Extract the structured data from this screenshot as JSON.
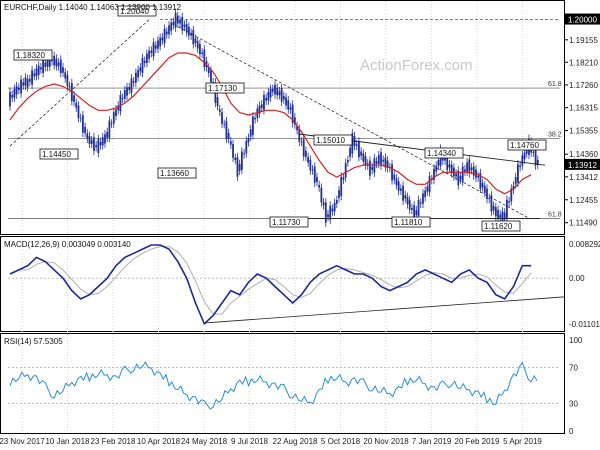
{
  "header": {
    "main": "EURCHF,Daily  1.14040 1.14063 1.13900 1.13912",
    "macd": "MACD(12,26,9) 0.003049 0.003140",
    "rsi": "RSI(14) 57.5305"
  },
  "watermark": "ActionForex.com",
  "colors": {
    "price": "#1e2f9b",
    "ema": "#d62020",
    "macd": "#1a2a9a",
    "signal": "#b0b0b0",
    "rsi": "#2a8ed8",
    "level": "#111111",
    "grid": "#d8d8d8"
  },
  "chart_data": [
    {
      "type": "candlestick",
      "title": "EURCHF,Daily",
      "ohlc_last": {
        "open": 1.1404,
        "high": 1.14063,
        "low": 1.139,
        "close": 1.13912
      },
      "ylim": [
        1.111,
        1.204
      ],
      "y_ticks": [
        1.2,
        1.1915,
        1.1821,
        1.1726,
        1.1631,
        1.1535,
        1.1436,
        1.1341,
        1.1245,
        1.1149
      ],
      "y_tick_labels": [
        "1.20000",
        "1.19155",
        "1.18210",
        "1.17260",
        "1.16315",
        "1.15355",
        "1.14360",
        "1.13412",
        "1.12455",
        "1.11490"
      ],
      "current_price_label": "1.13912",
      "x_tick_labels": [
        "23 Nov 2017",
        "10 Jan 2018",
        "23 Feb 2018",
        "10 Apr 2018",
        "24 May 2018",
        "9 Jul 2018",
        "22 Aug 2018",
        "5 Oct 2018",
        "20 Nov 2018",
        "7 Jan 2019",
        "20 Feb 2019",
        "5 Apr 2019"
      ],
      "close_path": [
        [
          1.166,
          1.171
        ],
        [
          1.1705,
          1.1745
        ],
        [
          1.1728,
          1.1775
        ],
        [
          1.1775,
          1.1808
        ],
        [
          1.1808,
          1.1832
        ],
        [
          1.1832,
          1.18
        ],
        [
          1.18,
          1.171
        ],
        [
          1.171,
          1.16
        ],
        [
          1.16,
          1.15
        ],
        [
          1.15,
          1.1465
        ],
        [
          1.1465,
          1.1505
        ],
        [
          1.1505,
          1.16
        ],
        [
          1.16,
          1.168
        ],
        [
          1.168,
          1.173
        ],
        [
          1.173,
          1.18
        ],
        [
          1.18,
          1.186
        ],
        [
          1.186,
          1.19
        ],
        [
          1.19,
          1.195
        ],
        [
          1.195,
          1.2004
        ],
        [
          1.2004,
          1.197
        ],
        [
          1.197,
          1.192
        ],
        [
          1.192,
          1.185
        ],
        [
          1.185,
          1.175
        ],
        [
          1.175,
          1.16
        ],
        [
          1.16,
          1.15
        ],
        [
          1.15,
          1.1366
        ],
        [
          1.1366,
          1.148
        ],
        [
          1.148,
          1.16
        ],
        [
          1.16,
          1.166
        ],
        [
          1.166,
          1.171
        ],
        [
          1.171,
          1.168
        ],
        [
          1.168,
          1.162
        ],
        [
          1.162,
          1.15
        ],
        [
          1.15,
          1.14
        ],
        [
          1.14,
          1.132
        ],
        [
          1.132,
          1.1173
        ],
        [
          1.1173,
          1.122
        ],
        [
          1.122,
          1.135
        ],
        [
          1.135,
          1.15
        ],
        [
          1.15,
          1.143
        ],
        [
          1.143,
          1.137
        ],
        [
          1.137,
          1.142
        ],
        [
          1.142,
          1.139
        ],
        [
          1.139,
          1.131
        ],
        [
          1.131,
          1.125
        ],
        [
          1.125,
          1.1181
        ],
        [
          1.1181,
          1.126
        ],
        [
          1.126,
          1.134
        ],
        [
          1.134,
          1.1435
        ],
        [
          1.1435,
          1.138
        ],
        [
          1.138,
          1.133
        ],
        [
          1.133,
          1.139
        ],
        [
          1.139,
          1.135
        ],
        [
          1.135,
          1.128
        ],
        [
          1.128,
          1.12
        ],
        [
          1.12,
          1.1162
        ],
        [
          1.1162,
          1.128
        ],
        [
          1.128,
          1.14
        ],
        [
          1.14,
          1.1476
        ],
        [
          1.1476,
          1.1391
        ]
      ],
      "ema_path": [
        1.158,
        1.163,
        1.167,
        1.17,
        1.172,
        1.173,
        1.172,
        1.17,
        1.167,
        1.164,
        1.162,
        1.162,
        1.163,
        1.165,
        1.168,
        1.172,
        1.176,
        1.18,
        1.184,
        1.186,
        1.186,
        1.185,
        1.182,
        1.178,
        1.172,
        1.165,
        1.161,
        1.16,
        1.161,
        1.162,
        1.162,
        1.161,
        1.158,
        1.153,
        1.147,
        1.141,
        1.136,
        1.134,
        1.136,
        1.138,
        1.139,
        1.139,
        1.139,
        1.138,
        1.136,
        1.133,
        1.131,
        1.131,
        1.134,
        1.136,
        1.136,
        1.136,
        1.136,
        1.135,
        1.133,
        1.129,
        1.127,
        1.129,
        1.133,
        1.135
      ],
      "levels": [
        {
          "label": "1.20040",
          "value": 1.2004
        },
        {
          "label": "1.18320",
          "value": 1.1832
        },
        {
          "label": "1.14450",
          "value": 1.1445
        },
        {
          "label": "1.13660",
          "value": 1.1366
        },
        {
          "label": "1.17130",
          "value": 1.1713
        },
        {
          "label": "1.11730",
          "value": 1.1173
        },
        {
          "label": "1.15010",
          "value": 1.1501
        },
        {
          "label": "1.11810",
          "value": 1.1181
        },
        {
          "label": "1.14340",
          "value": 1.1434
        },
        {
          "label": "1.11620",
          "value": 1.1162
        },
        {
          "label": "1.14760",
          "value": 1.1476
        }
      ],
      "fib_labels": [
        "61.8",
        "38.2",
        "61.8"
      ],
      "fib_values": [
        1.1713,
        1.1501,
        1.1166
      ]
    },
    {
      "type": "line",
      "title": "MACD(12,26,9)",
      "series": [
        {
          "name": "MACD",
          "value": 0.003049
        },
        {
          "name": "Signal",
          "value": 0.00314
        }
      ],
      "y_tick_labels": [
        "0.008292",
        "0.00",
        "-0.011015"
      ],
      "ylim": [
        -0.0125,
        0.0092
      ]
    },
    {
      "type": "line",
      "title": "RSI(14)",
      "value": 57.5305,
      "y_tick_labels": [
        "100",
        "70",
        "30",
        "0"
      ],
      "ylim": [
        0,
        100
      ]
    }
  ]
}
